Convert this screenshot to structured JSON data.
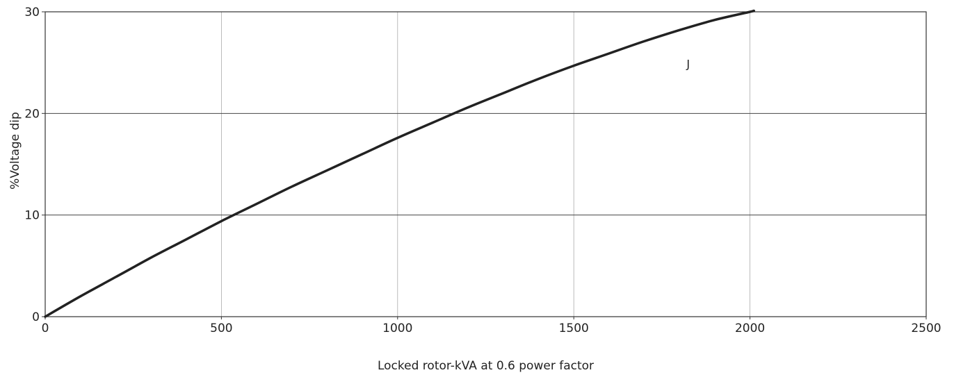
{
  "chart_data": {
    "type": "line",
    "title": "",
    "xlabel": "Locked rotor-kVA at 0.6 power factor",
    "ylabel": "%Voltage dip",
    "xlim": [
      0,
      2500
    ],
    "ylim": [
      0,
      30
    ],
    "x_ticks": [
      "0",
      "500",
      "1000",
      "1500",
      "2000",
      "2500"
    ],
    "y_ticks": [
      "0",
      "10",
      "20",
      "30"
    ],
    "grid": true,
    "series": [
      {
        "name": "",
        "color": "#222222",
        "x": [
          0,
          100,
          200,
          300,
          400,
          500,
          600,
          700,
          800,
          900,
          1000,
          1100,
          1200,
          1300,
          1400,
          1500,
          1600,
          1700,
          1800,
          1900,
          2000,
          2010
        ],
        "y": [
          0,
          2.0,
          3.9,
          5.8,
          7.6,
          9.4,
          11.1,
          12.8,
          14.4,
          16.0,
          17.6,
          19.1,
          20.6,
          22.0,
          23.4,
          24.7,
          25.9,
          27.1,
          28.2,
          29.2,
          30.0,
          30.1
        ]
      }
    ],
    "annotations": [
      {
        "text": "J",
        "x": 1820,
        "y": 24.5
      }
    ],
    "colors": {
      "line": "#222222",
      "grid_major": "#444444",
      "grid_minor": "#aaaaaa",
      "axis": "#333333"
    }
  }
}
